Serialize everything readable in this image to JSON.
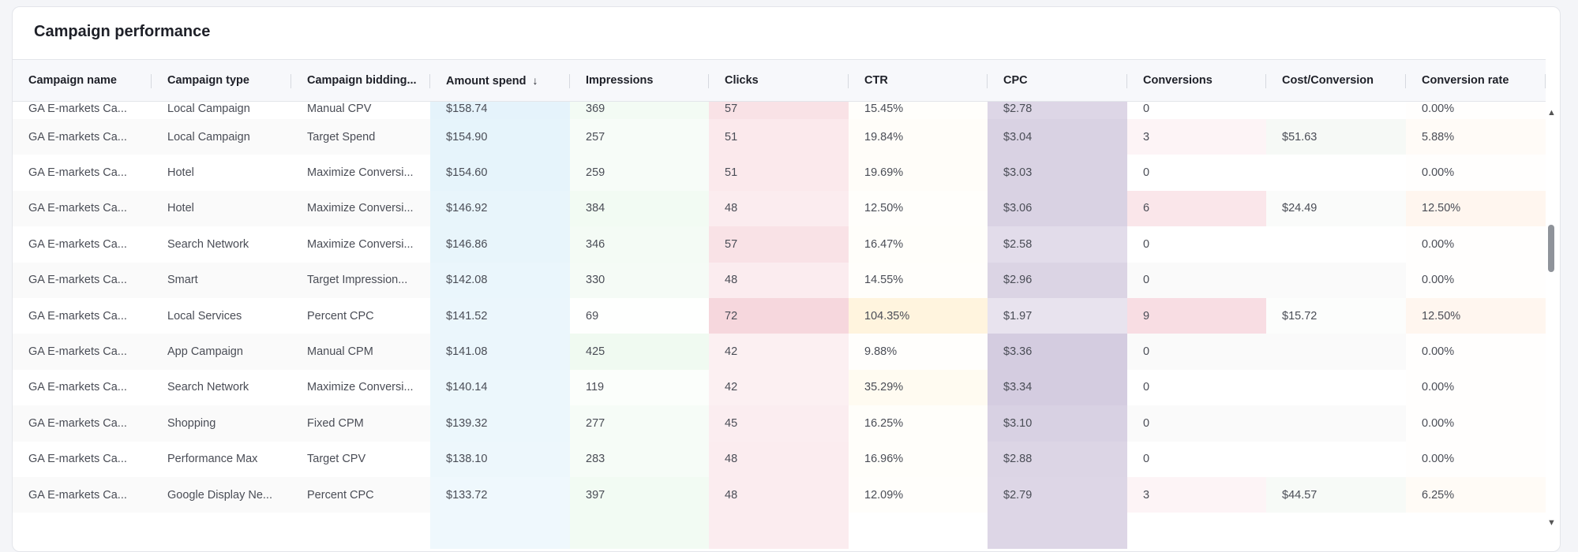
{
  "title": "Campaign performance",
  "columns": [
    {
      "label": "Campaign name",
      "width": 176
    },
    {
      "label": "Campaign type",
      "width": 177
    },
    {
      "label": "Campaign bidding...",
      "width": 176
    },
    {
      "label": "Amount spend",
      "width": 177,
      "sort": "↓"
    },
    {
      "label": "Impressions",
      "width": 176
    },
    {
      "label": "Clicks",
      "width": 177
    },
    {
      "label": "CTR",
      "width": 176
    },
    {
      "label": "CPC",
      "width": 177
    },
    {
      "label": "Conversions",
      "width": 176
    },
    {
      "label": "Cost/Conversion",
      "width": 177
    },
    {
      "label": "Conversion rate",
      "width": 177
    }
  ],
  "rows": [
    {
      "cells": [
        "GA E-markets Ca...",
        "Local Campaign",
        "Manual CPV",
        "$158.74",
        "369",
        "57",
        "15.45%",
        "$2.78",
        "0",
        "",
        "0.00%"
      ],
      "colors": [
        "",
        "",
        "",
        "#e5f3fb",
        "#f3fbf4",
        "#f9e2e6",
        "#fffefb",
        "#ddd6e6",
        "",
        "",
        "#fffefd"
      ]
    },
    {
      "cells": [
        "GA E-markets Ca...",
        "Local Campaign",
        "Target Spend",
        "$154.90",
        "257",
        "51",
        "19.84%",
        "$3.04",
        "3",
        "$51.63",
        "5.88%"
      ],
      "colors": [
        "",
        "",
        "",
        "#e6f4fb",
        "#f7fcf8",
        "#fbe9ec",
        "#fffdf9",
        "#d9d2e3",
        "#fdf4f6",
        "#f6f9f6",
        "#fffbf7"
      ]
    },
    {
      "cells": [
        "GA E-markets Ca...",
        "Hotel",
        "Maximize Conversi...",
        "$154.60",
        "259",
        "51",
        "19.69%",
        "$3.03",
        "0",
        "",
        "0.00%"
      ],
      "colors": [
        "",
        "",
        "",
        "#e6f4fb",
        "#f7fcf8",
        "#fbe9ec",
        "#fffdf9",
        "#d9d2e3",
        "",
        "",
        "#fffefd"
      ]
    },
    {
      "cells": [
        "GA E-markets Ca...",
        "Hotel",
        "Maximize Conversi...",
        "$146.92",
        "384",
        "48",
        "12.50%",
        "$3.06",
        "6",
        "$24.49",
        "12.50%"
      ],
      "colors": [
        "",
        "",
        "",
        "#e8f5fb",
        "#f2fbf3",
        "#fbecef",
        "#fffefb",
        "#d9d2e3",
        "#fae6ea",
        "#fafbfa",
        "#fff6ef"
      ]
    },
    {
      "cells": [
        "GA E-markets Ca...",
        "Search Network",
        "Maximize Conversi...",
        "$146.86",
        "346",
        "57",
        "16.47%",
        "$2.58",
        "0",
        "",
        "0.00%"
      ],
      "colors": [
        "",
        "",
        "",
        "#e8f5fb",
        "#f4fbf5",
        "#f9e2e6",
        "#fffefa",
        "#e2dcea",
        "",
        "",
        "#fffefd"
      ]
    },
    {
      "cells": [
        "GA E-markets Ca...",
        "Smart",
        "Target Impression...",
        "$142.08",
        "330",
        "48",
        "14.55%",
        "$2.96",
        "0",
        "",
        "0.00%"
      ],
      "colors": [
        "",
        "",
        "",
        "#eaf6fc",
        "#f5fbf6",
        "#fbecef",
        "#fffefb",
        "#dbd4e4",
        "",
        "",
        "#fffefd"
      ]
    },
    {
      "cells": [
        "GA E-markets Ca...",
        "Local Services",
        "Percent CPC",
        "$141.52",
        "69",
        "72",
        "104.35%",
        "$1.97",
        "9",
        "$15.72",
        "12.50%"
      ],
      "colors": [
        "",
        "",
        "",
        "#ebf6fc",
        "#fefffe",
        "#f6d7dd",
        "#fff4de",
        "#e8e3ee",
        "#f8dde3",
        "#fcfdfc",
        "#fff6ef"
      ]
    },
    {
      "cells": [
        "GA E-markets Ca...",
        "App Campaign",
        "Manual CPM",
        "$141.08",
        "425",
        "42",
        "9.88%",
        "$3.36",
        "0",
        "",
        "0.00%"
      ],
      "colors": [
        "",
        "",
        "",
        "#ebf6fc",
        "#f0faf1",
        "#fcf0f2",
        "#fffefc",
        "#d4cce0",
        "",
        "",
        "#fffefd"
      ]
    },
    {
      "cells": [
        "GA E-markets Ca...",
        "Search Network",
        "Maximize Conversi...",
        "$140.14",
        "119",
        "42",
        "35.29%",
        "$3.34",
        "0",
        "",
        "0.00%"
      ],
      "colors": [
        "",
        "",
        "",
        "#ecf7fc",
        "#fbfefb",
        "#fcf0f2",
        "#fffbf1",
        "#d4cce0",
        "",
        "",
        "#fffefd"
      ]
    },
    {
      "cells": [
        "GA E-markets Ca...",
        "Shopping",
        "Fixed CPM",
        "$139.32",
        "277",
        "45",
        "16.25%",
        "$3.10",
        "0",
        "",
        "0.00%"
      ],
      "colors": [
        "",
        "",
        "",
        "#ecf7fc",
        "#f6fcf7",
        "#fbedf0",
        "#fffefa",
        "#d8d1e3",
        "",
        "",
        "#fffefd"
      ]
    },
    {
      "cells": [
        "GA E-markets Ca...",
        "Performance Max",
        "Target CPV",
        "$138.10",
        "283",
        "48",
        "16.96%",
        "$2.88",
        "0",
        "",
        "0.00%"
      ],
      "colors": [
        "",
        "",
        "",
        "#edf7fc",
        "#f6fcf7",
        "#fbecef",
        "#fffefa",
        "#dcd5e5",
        "",
        "",
        "#fffefd"
      ]
    },
    {
      "cells": [
        "GA E-markets Ca...",
        "Google Display Ne...",
        "Percent CPC",
        "$133.72",
        "397",
        "48",
        "12.09%",
        "$2.79",
        "3",
        "$44.57",
        "6.25%"
      ],
      "colors": [
        "",
        "",
        "",
        "#eff8fd",
        "#f2fbf3",
        "#fbecef",
        "#fffefb",
        "#ddd6e6",
        "#fdf4f6",
        "#f7faf7",
        "#fffbf6"
      ]
    },
    {
      "cells": [
        "",
        "",
        "",
        "",
        "",
        "",
        "",
        "",
        "",
        "",
        ""
      ],
      "colors": [
        "",
        "",
        "",
        "#eff8fd",
        "#f2fbf3",
        "#fbecef",
        "",
        "#ddd6e6",
        "",
        "",
        ""
      ]
    }
  ],
  "scrollbar": {
    "up_icon": "▲",
    "down_icon": "▼"
  }
}
